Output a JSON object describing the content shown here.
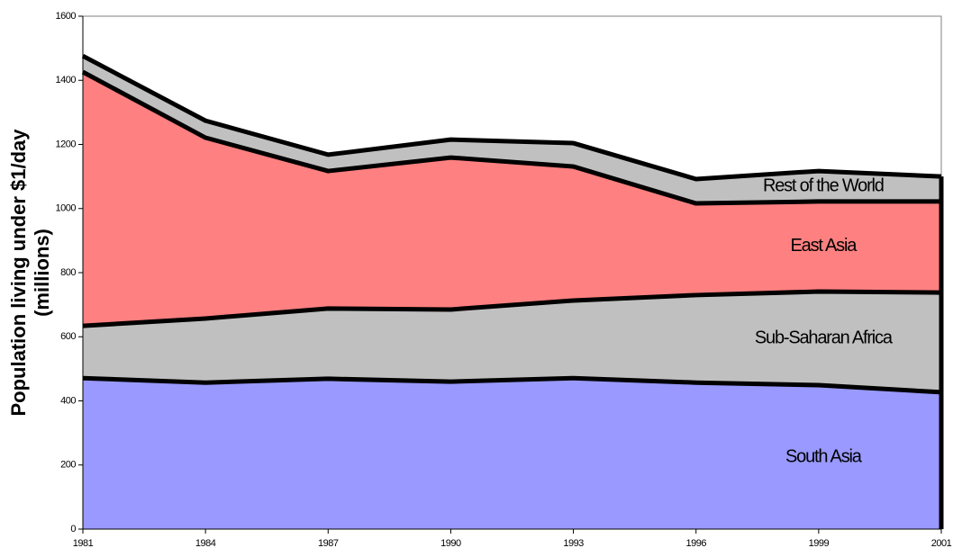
{
  "chart_data": {
    "type": "stacked_area",
    "y_label": [
      "Population living under $1/day",
      "(millions)"
    ],
    "categories": [
      "1981",
      "1984",
      "1987",
      "1990",
      "1993",
      "1996",
      "1999",
      "2001"
    ],
    "series": [
      {
        "name": "South Asia",
        "color": "#9999ff",
        "values": [
          471,
          457,
          469,
          460,
          471,
          457,
          449,
          427
        ]
      },
      {
        "name": "Sub-Saharan Africa",
        "color": "#c0c0c0",
        "values": [
          163,
          200,
          219,
          225,
          242,
          273,
          292,
          311
        ]
      },
      {
        "name": "East Asia",
        "color": "#ff8080",
        "values": [
          792,
          564,
          429,
          474,
          418,
          286,
          281,
          284
        ]
      },
      {
        "name": "Rest of the World",
        "color": "#c0c0c0",
        "values": [
          50,
          53,
          51,
          56,
          73,
          76,
          95,
          78
        ]
      }
    ],
    "ylim": [
      0,
      1600
    ],
    "yticks": [
      0,
      200,
      400,
      600,
      800,
      1000,
      1200,
      1400,
      1600
    ]
  }
}
